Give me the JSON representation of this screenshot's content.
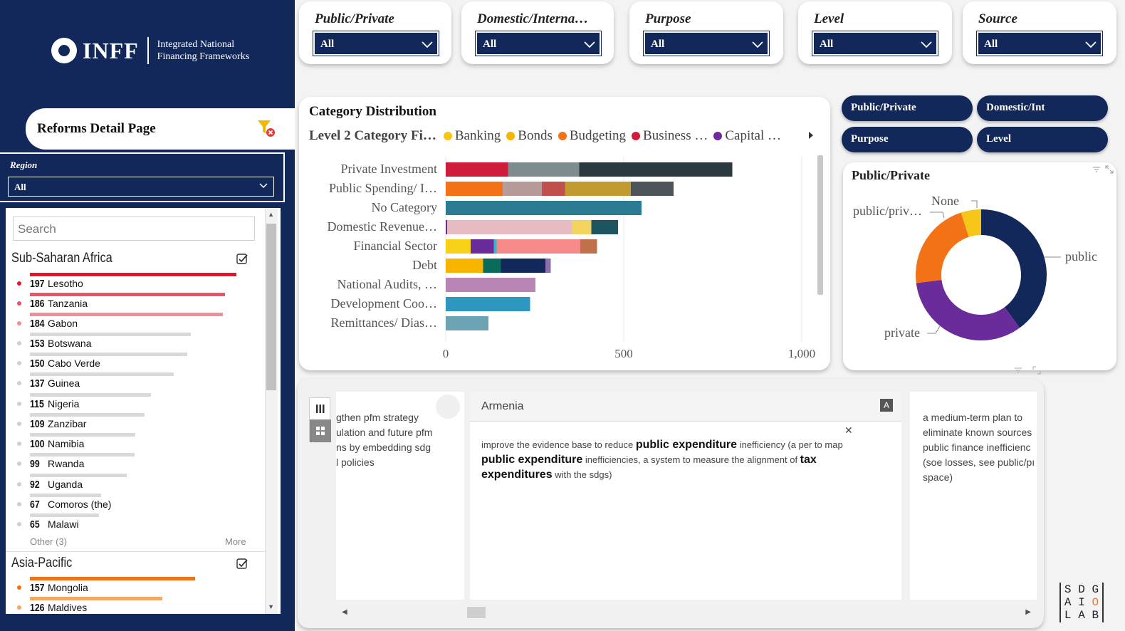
{
  "brand": {
    "logo_text": "INFF",
    "logo_sub_1": "Integrated National",
    "logo_sub_2": "Financing Frameworks"
  },
  "page_title": "Reforms Detail Page",
  "region": {
    "label": "Region",
    "value": "All"
  },
  "search": {
    "placeholder": "Search"
  },
  "groups": [
    {
      "name": "Sub-Saharan Africa",
      "rows": [
        {
          "count": "197",
          "name": "Lesotho"
        },
        {
          "count": "186",
          "name": "Tanzania"
        },
        {
          "count": "184",
          "name": "Gabon"
        },
        {
          "count": "153",
          "name": "Botswana"
        },
        {
          "count": "150",
          "name": "Cabo Verde"
        },
        {
          "count": "137",
          "name": "Guinea"
        },
        {
          "count": "115",
          "name": "Nigeria"
        },
        {
          "count": "109",
          "name": "Zanzibar"
        },
        {
          "count": "100",
          "name": "Namibia"
        },
        {
          "count": "99",
          "name": "Rwanda"
        },
        {
          "count": "92",
          "name": "Uganda"
        },
        {
          "count": "67",
          "name": "Comoros (the)"
        },
        {
          "count": "65",
          "name": "Malawi"
        }
      ],
      "other": "Other (3)",
      "more": "More"
    },
    {
      "name": "Asia-Pacific",
      "rows": [
        {
          "count": "157",
          "name": "Mongolia"
        },
        {
          "count": "126",
          "name": "Maldives"
        }
      ]
    }
  ],
  "filters": [
    {
      "label": "Public/Private",
      "value": "All"
    },
    {
      "label": "Domestic/Interna…",
      "value": "All"
    },
    {
      "label": "Purpose",
      "value": "All"
    },
    {
      "label": "Level",
      "value": "All"
    },
    {
      "label": "Source",
      "value": "All"
    }
  ],
  "pills": [
    "Public/Private",
    "Domestic/Int",
    "Purpose",
    "Level"
  ],
  "chart_data": [
    {
      "type": "bar",
      "orientation": "horizontal",
      "stacked": true,
      "title": "Category Distribution",
      "legend_title": "Level 2 Category Fi…",
      "legend": [
        {
          "name": "Banking",
          "color": "#f5c518"
        },
        {
          "name": "Bonds",
          "color": "#f7b500"
        },
        {
          "name": "Budgeting",
          "color": "#f47216"
        },
        {
          "name": "Business …",
          "color": "#d01c3c"
        },
        {
          "name": "Capital …",
          "color": "#6a2c9a"
        }
      ],
      "categories": [
        "Private Investment",
        "Public Spending/ I…",
        "No Category",
        "Domestic Revenue…",
        "Financial Sector",
        "Debt",
        "National Audits, …",
        "Development Coo…",
        "Remittances/ Dias…"
      ],
      "segments": [
        [
          {
            "v": 175,
            "c": "#d01c3c"
          },
          {
            "v": 200,
            "c": "#7f8c8d"
          },
          {
            "v": 430,
            "c": "#2b3a3e"
          }
        ],
        [
          {
            "v": 160,
            "c": "#f47216"
          },
          {
            "v": 110,
            "c": "#b79b9b"
          },
          {
            "v": 65,
            "c": "#c0504d"
          },
          {
            "v": 185,
            "c": "#bf9b30"
          },
          {
            "v": 120,
            "c": "#4d5459"
          }
        ],
        [
          {
            "v": 550,
            "c": "#2b7c93"
          }
        ],
        [
          {
            "v": 4,
            "c": "#6a2c9a"
          },
          {
            "v": 350,
            "c": "#e6bcc0"
          },
          {
            "v": 55,
            "c": "#f4d35e"
          },
          {
            "v": 75,
            "c": "#1c5560"
          }
        ],
        [
          {
            "v": 70,
            "c": "#f7d117"
          },
          {
            "v": 65,
            "c": "#6a2c9a"
          },
          {
            "v": 8,
            "c": "#38b6c8"
          },
          {
            "v": 235,
            "c": "#f58a8a"
          },
          {
            "v": 47,
            "c": "#c0704d"
          }
        ],
        [
          {
            "v": 105,
            "c": "#f7b500"
          },
          {
            "v": 50,
            "c": "#0b6b5a"
          },
          {
            "v": 125,
            "c": "#12275a"
          },
          {
            "v": 15,
            "c": "#8a6fa8"
          }
        ],
        [
          {
            "v": 252,
            "c": "#b985b4"
          }
        ],
        [
          {
            "v": 237,
            "c": "#2e97c0"
          }
        ],
        [
          {
            "v": 120,
            "c": "#6ba3b5"
          }
        ]
      ],
      "xticks": [
        "0",
        "500",
        "1,000"
      ],
      "xlim": [
        0,
        1000
      ]
    },
    {
      "type": "pie",
      "donut": true,
      "title": "Public/Private",
      "slices": [
        {
          "name": "public",
          "value": 40,
          "color": "#12275a"
        },
        {
          "name": "private",
          "value": 33,
          "color": "#6a2c9a"
        },
        {
          "name": "public/priv…",
          "value": 22,
          "color": "#f47216"
        },
        {
          "name": "None",
          "value": 5,
          "color": "#f5c518"
        }
      ]
    }
  ],
  "cards": {
    "left_lines": [
      "gthen pfm strategy",
      "ulation and future pfm",
      "ns by embedding sdg",
      "l policies"
    ],
    "mid_title": "Armenia",
    "mid_badge": "A",
    "mid_p1_a": "improve the evidence base to reduce ",
    "mid_p1_b": "public expenditure",
    "mid_p1_c": " inefficiency (a per to map ",
    "mid_p2_a": "public expenditure",
    "mid_p2_b": " inefficiencies, a system to measure the alignment of ",
    "mid_p2_c": "tax",
    "mid_p3_a": "expenditures",
    "mid_p3_b": " with the sdgs)",
    "right_lines": [
      "a medium-term plan to",
      "eliminate known sources",
      "public finance inefficienc",
      "(soe losses, see public/pı",
      "space)"
    ]
  },
  "footer_logo": [
    "S",
    "D",
    "G",
    "A",
    "I",
    "O",
    "L",
    "A",
    "B"
  ]
}
